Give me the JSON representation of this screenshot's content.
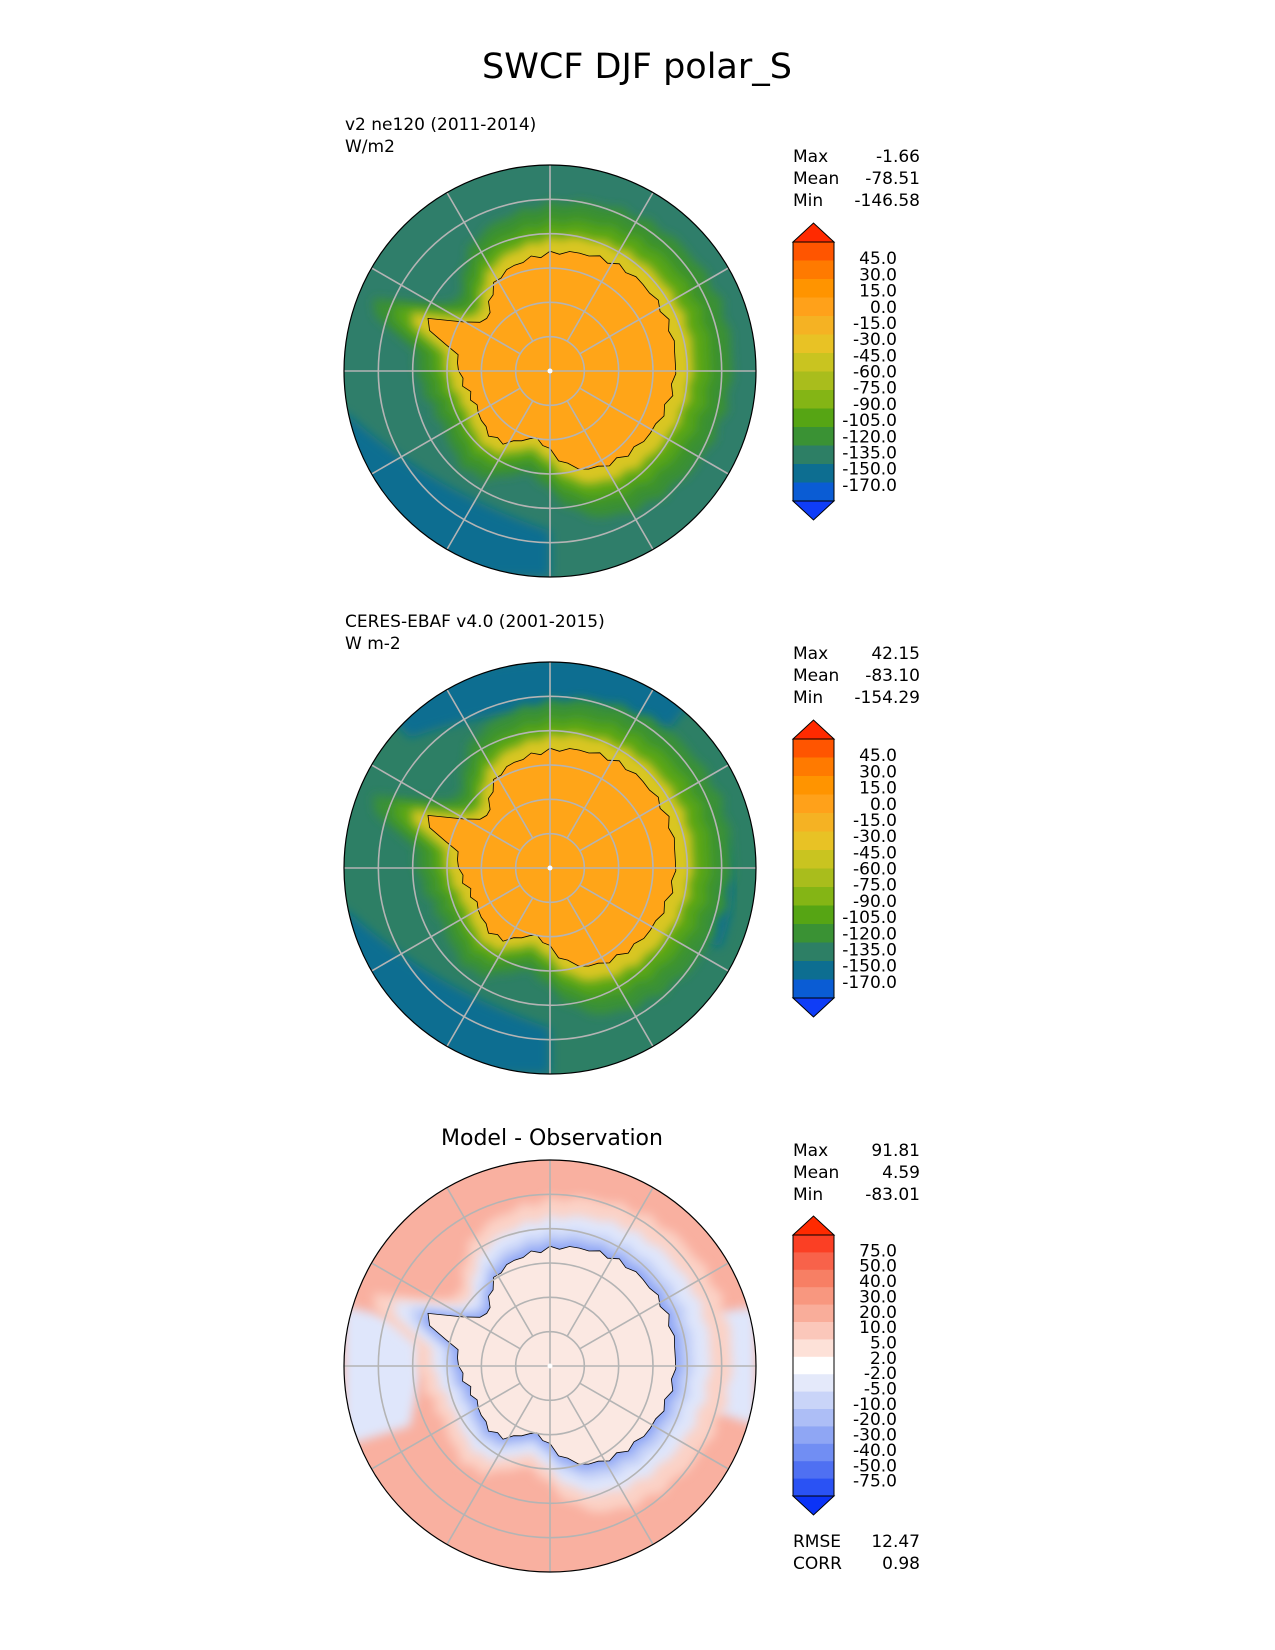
{
  "chart_data": {
    "type": "contour-map",
    "title": "SWCF DJF polar_S",
    "panels": [
      {
        "id": "test",
        "label_line1": "v2 ne120 (2011-2014)",
        "label_line2": "W/m2",
        "title": "",
        "stats": [
          {
            "name": "Max",
            "value": "-1.66"
          },
          {
            "name": "Mean",
            "value": "-78.51"
          },
          {
            "name": "Min",
            "value": "-146.58"
          }
        ],
        "colorbar": {
          "labels": [
            "45.0",
            "30.0",
            "15.0",
            "0.0",
            "-15.0",
            "-30.0",
            "-45.0",
            "-60.0",
            "-75.0",
            "-90.0",
            "-105.0",
            "-120.0",
            "-135.0",
            "-150.0",
            "-170.0"
          ],
          "colors": [
            "#ff2a00",
            "#ff5500",
            "#ff7a00",
            "#ff9400",
            "#ffa11a",
            "#f5b223",
            "#e8c225",
            "#c9c420",
            "#a9bd1c",
            "#84b515",
            "#56a514",
            "#3a9234",
            "#2d7f65",
            "#0d6e91",
            "#0a5cd4",
            "#0f3df7"
          ]
        },
        "region_colors": {
          "ocean_outer": "#2f7e6a",
          "ocean_mid": "#3a9133",
          "ocean_inner": "#56a514",
          "coast_band": "#d9c623",
          "ice": "#ffa518",
          "deep_blue": "#0d6e91"
        }
      },
      {
        "id": "reference",
        "label_line1": "CERES-EBAF v4.0 (2001-2015)",
        "label_line2": "W m-2",
        "title": "",
        "stats": [
          {
            "name": "Max",
            "value": "42.15"
          },
          {
            "name": "Mean",
            "value": "-83.10"
          },
          {
            "name": "Min",
            "value": "-154.29"
          }
        ],
        "colorbar": {
          "labels": [
            "45.0",
            "30.0",
            "15.0",
            "0.0",
            "-15.0",
            "-30.0",
            "-45.0",
            "-60.0",
            "-75.0",
            "-90.0",
            "-105.0",
            "-120.0",
            "-135.0",
            "-150.0",
            "-170.0"
          ],
          "colors": [
            "#ff2a00",
            "#ff5500",
            "#ff7a00",
            "#ff9400",
            "#ffa11a",
            "#f5b223",
            "#e8c225",
            "#c9c420",
            "#a9bd1c",
            "#84b515",
            "#56a514",
            "#3a9234",
            "#2d7f65",
            "#0d6e91",
            "#0a5cd4",
            "#0f3df7"
          ]
        },
        "region_colors": {
          "ocean_outer": "#2d7f65",
          "ocean_mid": "#3a9234",
          "ocean_inner": "#56a514",
          "coast_band": "#d9c623",
          "ice": "#ffa518",
          "deep_blue": "#0d6e91"
        }
      },
      {
        "id": "diff",
        "label_line1": "",
        "label_line2": "",
        "title": "Model - Observation",
        "stats": [
          {
            "name": "Max",
            "value": "91.81"
          },
          {
            "name": "Mean",
            "value": "4.59"
          },
          {
            "name": "Min",
            "value": "-83.01"
          }
        ],
        "metrics": [
          {
            "name": "RMSE",
            "value": "12.47"
          },
          {
            "name": "CORR",
            "value": "0.98"
          }
        ],
        "colorbar": {
          "labels": [
            "75.0",
            "50.0",
            "40.0",
            "30.0",
            "20.0",
            "10.0",
            "5.0",
            "2.0",
            "-2.0",
            "-5.0",
            "-10.0",
            "-20.0",
            "-30.0",
            "-40.0",
            "-50.0",
            "-75.0"
          ],
          "colors": [
            "#ff2a00",
            "#fb3f24",
            "#f8624a",
            "#f77f64",
            "#f8977f",
            "#f9ad9a",
            "#fbc7ba",
            "#fde1d8",
            "#ffffff",
            "#e4e9fa",
            "#c9d4f8",
            "#adbef6",
            "#8fa6f4",
            "#718ef3",
            "#4f70f2",
            "#2a52f4",
            "#0b33f7"
          ]
        },
        "region_colors": {
          "ocean_outer": "#f9b0a0",
          "ocean_mid": "#fbd2c6",
          "ocean_inner": "#dfe6fb",
          "coast_band": "#c0cdf7",
          "ice": "#fbe8e2",
          "deep_blue": "#8aa2f4"
        }
      }
    ],
    "grid": {
      "latitude_circles": 5,
      "meridians": 12,
      "visible": true
    }
  }
}
